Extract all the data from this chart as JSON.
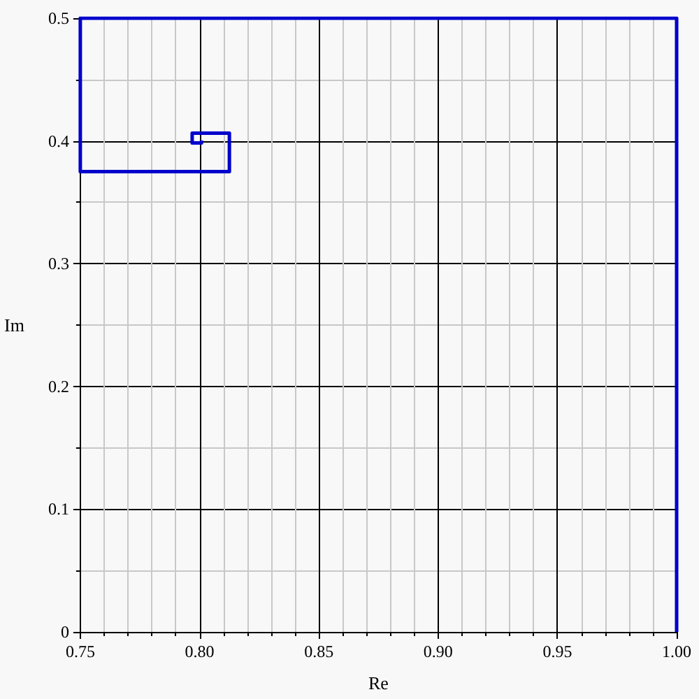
{
  "chart_data": {
    "type": "line",
    "xlabel": "Re",
    "ylabel": "Im",
    "x": [
      1.0,
      1.0,
      0.75,
      0.75,
      0.8125,
      0.8125,
      0.7969,
      0.7969,
      0.8008,
      0.8008
    ],
    "series": [
      {
        "color": "#0000cc",
        "values": [
          0,
          0.5,
          0.5,
          0.375,
          0.375,
          0.4063,
          0.4063,
          0.3984,
          0.3984,
          0.4004
        ]
      }
    ],
    "xlim": [
      0.75,
      1.0
    ],
    "xticks": [
      {
        "value": 0.75,
        "label": "0.75"
      },
      {
        "value": 0.8,
        "label": "0.80"
      },
      {
        "value": 0.85,
        "label": "0.85"
      },
      {
        "value": 0.9,
        "label": "0.90"
      },
      {
        "value": 0.95,
        "label": "0.95"
      },
      {
        "value": 1.0,
        "label": "1.00"
      }
    ],
    "ylim": [
      0,
      0.5
    ],
    "yticks": [
      0,
      0.1,
      0.2,
      0.3,
      0.4,
      0.5
    ],
    "grid": true,
    "marker": "none",
    "line_style": "solid"
  }
}
